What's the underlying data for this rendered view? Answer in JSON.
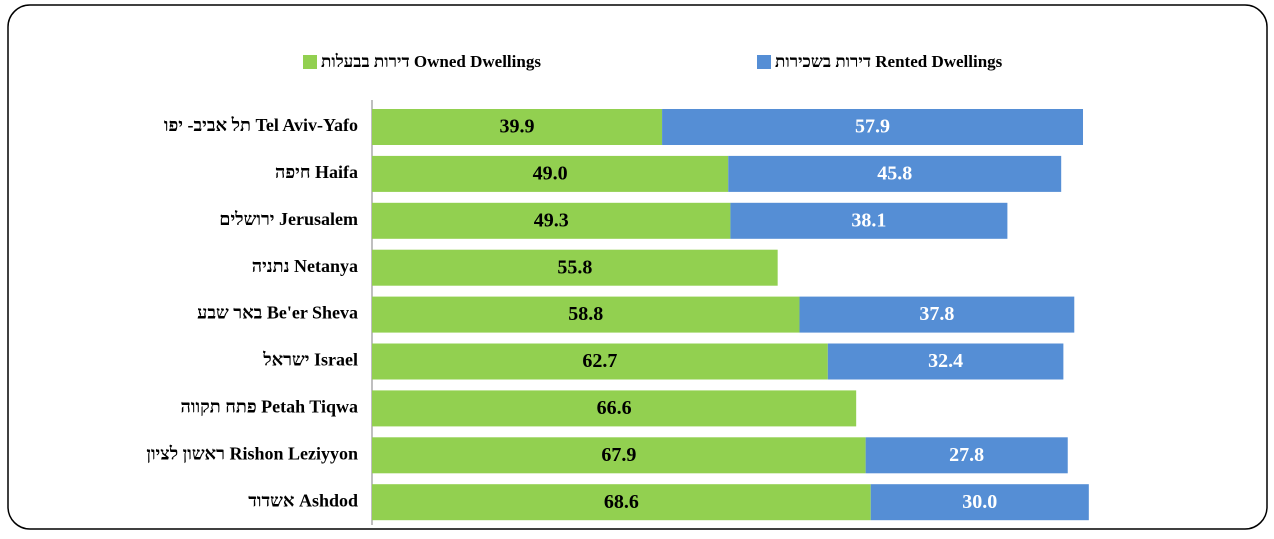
{
  "chart_data": {
    "type": "stacked_bar_horizontal",
    "categories": [
      "תל אביב- יפו Tel Aviv-Yafo",
      "חיפה Haifa",
      "ירושלים  Jerusalem",
      "נתניה Netanya",
      "באר שבע Be'er Sheva",
      "ישראל Israel",
      "פתח תקווה Petah Tiqwa",
      "ראשון לציון Rishon Leziyyon",
      "אשדוד Ashdod"
    ],
    "series": [
      {
        "name": "דירות בבעלות Owned Dwellings",
        "color": "#92d050",
        "values": [
          39.9,
          49.0,
          49.3,
          55.8,
          58.8,
          62.7,
          66.6,
          67.9,
          68.6
        ],
        "value_labels": [
          "39.9",
          "49.0",
          "49.3",
          "55.8",
          "58.8",
          "62.7",
          "66.6",
          "67.9",
          "68.6"
        ]
      },
      {
        "name": "דירות בשכירות Rented Dwellings",
        "color": "#558ed5",
        "values": [
          57.9,
          45.8,
          38.1,
          null,
          37.8,
          32.4,
          null,
          27.8,
          30.0
        ],
        "value_labels": [
          "57.9",
          "45.8",
          "38.1",
          null,
          "37.8",
          "32.4",
          null,
          "27.8",
          "30.0"
        ]
      }
    ],
    "xlim": [
      0,
      100
    ]
  }
}
